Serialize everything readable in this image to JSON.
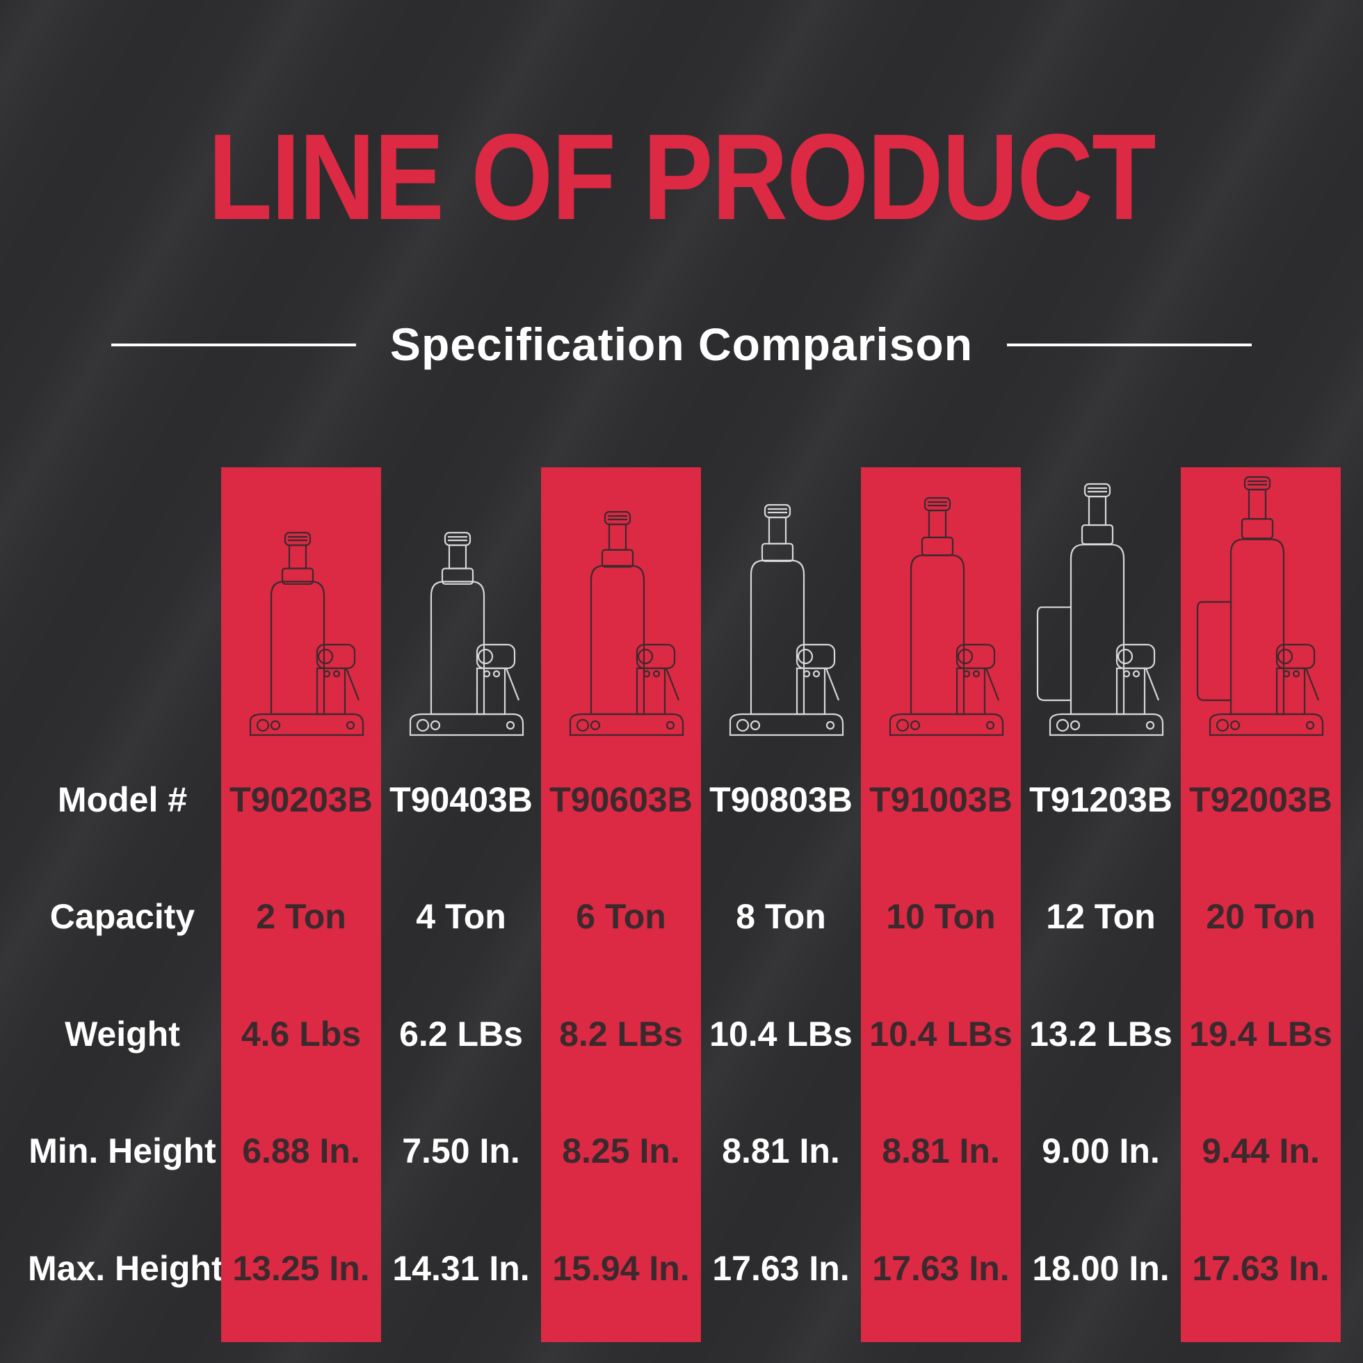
{
  "title": "LINE OF PRODUCT",
  "subtitle": "Specification Comparison",
  "colors": {
    "accent": "#dc2944",
    "background": "#2e2e30",
    "text_light": "#ffffff",
    "text_dark": "#3a2a2d"
  },
  "row_labels": [
    "Model #",
    "Capacity",
    "Weight",
    "Min. Height",
    "Max. Height"
  ],
  "products": [
    {
      "model": "T90203B",
      "capacity": "2 Ton",
      "weight": "4.6 Lbs",
      "min_height": "6.88 In.",
      "max_height": "13.25 In.",
      "highlight": true,
      "icon": "bottle-jack-icon"
    },
    {
      "model": "T90403B",
      "capacity": "4 Ton",
      "weight": "6.2 LBs",
      "min_height": "7.50 In.",
      "max_height": "14.31 In.",
      "highlight": false,
      "icon": "bottle-jack-icon"
    },
    {
      "model": "T90603B",
      "capacity": "6 Ton",
      "weight": "8.2 LBs",
      "min_height": "8.25 In.",
      "max_height": "15.94 In.",
      "highlight": true,
      "icon": "bottle-jack-icon"
    },
    {
      "model": "T90803B",
      "capacity": "8 Ton",
      "weight": "10.4 LBs",
      "min_height": "8.81 In.",
      "max_height": "17.63 In.",
      "highlight": false,
      "icon": "bottle-jack-icon"
    },
    {
      "model": "T91003B",
      "capacity": "10 Ton",
      "weight": "10.4 LBs",
      "min_height": "8.81 In.",
      "max_height": "17.63 In.",
      "highlight": true,
      "icon": "bottle-jack-icon"
    },
    {
      "model": "T91203B",
      "capacity": "12 Ton",
      "weight": "13.2 LBs",
      "min_height": "9.00 In.",
      "max_height": "18.00 In.",
      "highlight": false,
      "icon": "bottle-jack-with-handle-icon"
    },
    {
      "model": "T92003B",
      "capacity": "20 Ton",
      "weight": "19.4 LBs",
      "min_height": "9.44 In.",
      "max_height": "17.63 In.",
      "highlight": true,
      "icon": "bottle-jack-with-handle-icon"
    }
  ]
}
